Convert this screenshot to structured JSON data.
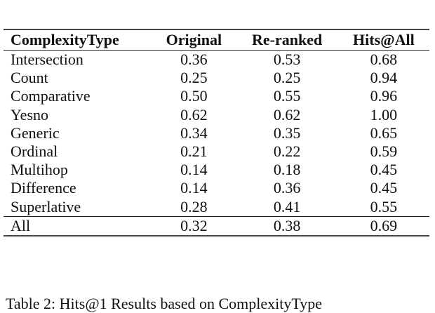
{
  "table": {
    "columns": [
      "ComplexityType",
      "Original",
      "Re-ranked",
      "Hits@All"
    ],
    "rows": [
      [
        "Intersection",
        "0.36",
        "0.53",
        "0.68"
      ],
      [
        "Count",
        "0.25",
        "0.25",
        "0.94"
      ],
      [
        "Comparative",
        "0.50",
        "0.55",
        "0.96"
      ],
      [
        "Yesno",
        "0.62",
        "0.62",
        "1.00"
      ],
      [
        "Generic",
        "0.34",
        "0.35",
        "0.65"
      ],
      [
        "Ordinal",
        "0.21",
        "0.22",
        "0.59"
      ],
      [
        "Multihop",
        "0.14",
        "0.18",
        "0.45"
      ],
      [
        "Difference",
        "0.14",
        "0.36",
        "0.45"
      ],
      [
        "Superlative",
        "0.28",
        "0.41",
        "0.55"
      ]
    ],
    "total": [
      "All",
      "0.32",
      "0.38",
      "0.69"
    ]
  },
  "caption": "Table 2: Hits@1 Results based on ComplexityType"
}
